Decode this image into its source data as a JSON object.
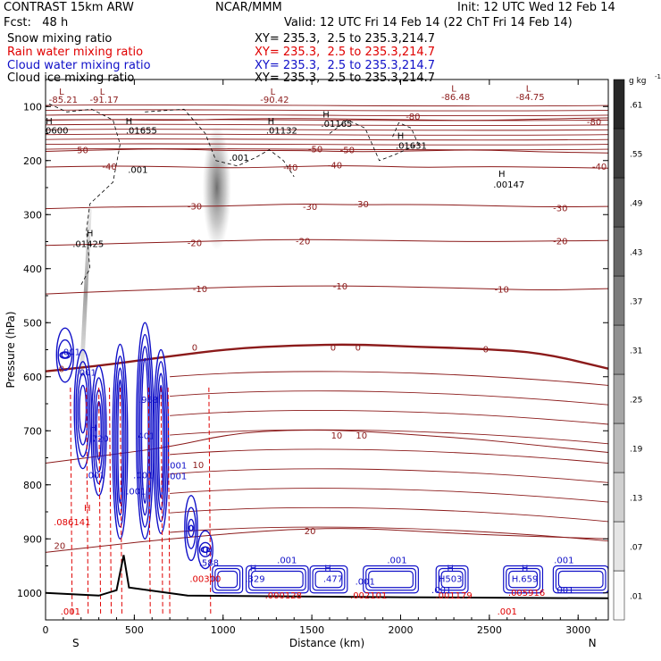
{
  "header": {
    "model": "CONTRAST 15km ARW",
    "org": "NCAR/MMM",
    "init": "Init: 12 UTC Wed 12 Feb 14",
    "fcst": "Fcst:   48 h",
    "valid": "Valid: 12 UTC Fri 14 Feb 14 (22 ChT Fri 14 Feb 14)"
  },
  "fields": [
    {
      "name": "Snow mixing ratio",
      "xy": "XY= 235.3,  2.5 to 235.3,214.7",
      "color": "#000000"
    },
    {
      "name": "Rain water mixing ratio",
      "xy": "XY= 235.3,  2.5 to 235.3,214.7",
      "color": "#e00000"
    },
    {
      "name": "Cloud water mixing ratio",
      "xy": "XY= 235.3,  2.5 to 235.3,214.7",
      "color": "#1010c8"
    },
    {
      "name": "Cloud ice mixing ratio",
      "xy": "XY= 235.3,  2.5 to 235.3,214.7",
      "color": "#000000"
    }
  ],
  "chart_data": {
    "type": "cross-section contour",
    "xlabel": "Distance (km)",
    "ylabel": "Pressure (hPa)",
    "xlim": [
      0,
      3170
    ],
    "ylim": [
      1050,
      50
    ],
    "x_ticks": [
      0,
      500,
      1000,
      1500,
      2000,
      2500,
      3000
    ],
    "y_ticks": [
      100,
      200,
      300,
      400,
      500,
      600,
      700,
      800,
      900,
      1000
    ],
    "x_end_labels": {
      "left": "S",
      "right": "N"
    },
    "colorbar": {
      "unit": "g kg",
      "unit_exp": "-1",
      "levels": [
        ".01",
        ".07",
        ".13",
        ".19",
        ".25",
        ".31",
        ".37",
        ".43",
        ".49",
        ".55",
        ".61"
      ],
      "level_values": [
        0.01,
        0.07,
        0.13,
        0.19,
        0.25,
        0.31,
        0.37,
        0.43,
        0.49,
        0.55,
        0.61
      ]
    },
    "temperature_contours": {
      "color": "#8b1a1a",
      "levels": [
        -80,
        -50,
        -40,
        -30,
        -20,
        -10,
        0,
        10,
        20
      ],
      "isolines": [
        {
          "label": "-80",
          "pressure": [
            125,
            124,
            126,
            123,
            122,
            123,
            125,
            126,
            123,
            121
          ]
        },
        {
          "label": "-50",
          "pressure": [
            183,
            180,
            178,
            182,
            181,
            184,
            182,
            180,
            184,
            186
          ]
        },
        {
          "label": "-40",
          "pressure": [
            212,
            210,
            211,
            214,
            211,
            209,
            213,
            211,
            212,
            214
          ]
        },
        {
          "label": "-30",
          "pressure": [
            289,
            286,
            285,
            284,
            280,
            282,
            281,
            283,
            286,
            285
          ]
        },
        {
          "label": "-20",
          "pressure": [
            357,
            354,
            351,
            348,
            346,
            347,
            349,
            350,
            349,
            348
          ]
        },
        {
          "label": "-10",
          "pressure": [
            447,
            442,
            438,
            434,
            432,
            432,
            434,
            437,
            440,
            437
          ]
        },
        {
          "label": "0",
          "pressure": [
            590,
            578,
            562,
            548,
            542,
            540,
            545,
            548,
            556,
            585
          ]
        },
        {
          "label": "10",
          "pressure": [
            760,
            745,
            730,
            705,
            698,
            700,
            708,
            716,
            728,
            740
          ]
        },
        {
          "label": "20",
          "pressure": [
            925,
            912,
            900,
            890,
            882,
            880,
            886,
            892,
            896,
            900
          ]
        }
      ],
      "x": [
        0,
        350,
        700,
        1050,
        1400,
        1750,
        2100,
        2450,
        2800,
        3170
      ]
    },
    "maxima_labels": [
      {
        "text": "L",
        "x": 90,
        "p": 78,
        "color": "#8b1a1a"
      },
      {
        "text": "-85.21",
        "x": 100,
        "p": 93,
        "color": "#8b1a1a"
      },
      {
        "text": "L",
        "x": 320,
        "p": 78,
        "color": "#8b1a1a"
      },
      {
        "text": "-91.17",
        "x": 330,
        "p": 93,
        "color": "#8b1a1a"
      },
      {
        "text": "L",
        "x": 1280,
        "p": 78,
        "color": "#8b1a1a"
      },
      {
        "text": "-90.42",
        "x": 1290,
        "p": 93,
        "color": "#8b1a1a"
      },
      {
        "text": "L",
        "x": 2300,
        "p": 72,
        "color": "#8b1a1a"
      },
      {
        "text": "-86.48",
        "x": 2310,
        "p": 88,
        "color": "#8b1a1a"
      },
      {
        "text": "L",
        "x": 2720,
        "p": 72,
        "color": "#8b1a1a"
      },
      {
        "text": "-84.75",
        "x": 2730,
        "p": 88,
        "color": "#8b1a1a"
      },
      {
        "text": "H",
        "x": 20,
        "p": 133,
        "color": "#000000"
      },
      {
        "text": ".00600",
        "x": 40,
        "p": 150,
        "color": "#000000"
      },
      {
        "text": "H",
        "x": 470,
        "p": 133,
        "color": "#000000"
      },
      {
        "text": ".01655",
        "x": 540,
        "p": 150,
        "color": "#000000"
      },
      {
        "text": "H",
        "x": 1270,
        "p": 133,
        "color": "#000000"
      },
      {
        "text": ".01132",
        "x": 1330,
        "p": 150,
        "color": "#000000"
      },
      {
        "text": "H",
        "x": 1580,
        "p": 120,
        "color": "#000000"
      },
      {
        "text": ".01165",
        "x": 1640,
        "p": 138,
        "color": "#000000"
      },
      {
        "text": "H",
        "x": 2000,
        "p": 160,
        "color": "#000000"
      },
      {
        "text": ".01631",
        "x": 2060,
        "p": 178,
        "color": "#000000"
      },
      {
        "text": "H",
        "x": 2570,
        "p": 230,
        "color": "#000000"
      },
      {
        "text": ".00147",
        "x": 2610,
        "p": 250,
        "color": "#000000"
      },
      {
        "text": "H",
        "x": 250,
        "p": 340,
        "color": "#000000"
      },
      {
        "text": ".01425",
        "x": 240,
        "p": 360,
        "color": "#000000"
      },
      {
        "text": ".001",
        "x": 520,
        "p": 223,
        "color": "#000000"
      },
      {
        "text": ".001",
        "x": 1090,
        "p": 200,
        "color": "#000000"
      },
      {
        "text": ".001",
        "x": 140,
        "p": 560,
        "color": "#1010c8"
      },
      {
        "text": ".001",
        "x": 230,
        "p": 598,
        "color": "#1010c8"
      },
      {
        "text": ".968",
        "x": 580,
        "p": 648,
        "color": "#1010c8"
      },
      {
        "text": "H",
        "x": 270,
        "p": 700,
        "color": "#1010c8"
      },
      {
        "text": ".720",
        "x": 300,
        "p": 720,
        "color": "#1010c8"
      },
      {
        "text": ".401",
        "x": 560,
        "p": 715,
        "color": "#1010c8"
      },
      {
        "text": ".001",
        "x": 280,
        "p": 788,
        "color": "#1010c8"
      },
      {
        "text": ".001",
        "x": 550,
        "p": 788,
        "color": "#1010c8"
      },
      {
        "text": ".001",
        "x": 740,
        "p": 770,
        "color": "#1010c8"
      },
      {
        "text": ".001",
        "x": 740,
        "p": 790,
        "color": "#1010c8"
      },
      {
        "text": ".001",
        "x": 510,
        "p": 818,
        "color": "#1010c8"
      },
      {
        "text": "H",
        "x": 235,
        "p": 848,
        "color": "#e00000"
      },
      {
        "text": ".086141",
        "x": 150,
        "p": 875,
        "color": "#e00000"
      },
      {
        "text": "H",
        "x": 920,
        "p": 930,
        "color": "#1010c8"
      },
      {
        "text": ".588",
        "x": 920,
        "p": 950,
        "color": "#1010c8"
      },
      {
        "text": ".00300",
        "x": 900,
        "p": 980,
        "color": "#e00000"
      },
      {
        "text": "H",
        "x": 1170,
        "p": 960,
        "color": "#1010c8"
      },
      {
        "text": ".329",
        "x": 1180,
        "p": 980,
        "color": "#1010c8"
      },
      {
        "text": ".001",
        "x": 1360,
        "p": 945,
        "color": "#1010c8"
      },
      {
        "text": ".000128",
        "x": 1340,
        "p": 1010,
        "color": "#e00000"
      },
      {
        "text": "H",
        "x": 1590,
        "p": 960,
        "color": "#1010c8"
      },
      {
        "text": ".477",
        "x": 1620,
        "p": 980,
        "color": "#1010c8"
      },
      {
        "text": ".001",
        "x": 1800,
        "p": 985,
        "color": "#1010c8"
      },
      {
        "text": ".002101",
        "x": 1820,
        "p": 1010,
        "color": "#e00000"
      },
      {
        "text": ".001",
        "x": 1980,
        "p": 945,
        "color": "#1010c8"
      },
      {
        "text": "H",
        "x": 2280,
        "p": 960,
        "color": "#1010c8"
      },
      {
        "text": "H503",
        "x": 2280,
        "p": 980,
        "color": "#1010c8"
      },
      {
        "text": ".001179",
        "x": 2300,
        "p": 1010,
        "color": "#e00000"
      },
      {
        "text": ".001",
        "x": 2230,
        "p": 1000,
        "color": "#1010c8"
      },
      {
        "text": "H",
        "x": 2700,
        "p": 960,
        "color": "#1010c8"
      },
      {
        "text": "H.659",
        "x": 2700,
        "p": 980,
        "color": "#1010c8"
      },
      {
        "text": ".005916",
        "x": 2710,
        "p": 1005,
        "color": "#e00000"
      },
      {
        "text": ".001",
        "x": 2920,
        "p": 945,
        "color": "#1010c8"
      },
      {
        "text": ".001",
        "x": 2920,
        "p": 1000,
        "color": "#1010c8"
      },
      {
        "text": ".001",
        "x": 2600,
        "p": 1040,
        "color": "#e00000"
      },
      {
        "text": ".001",
        "x": 140,
        "p": 1040,
        "color": "#e00000"
      }
    ],
    "isotherm_labels": [
      {
        "text": "-80",
        "x": 2070,
        "p": 118
      },
      {
        "text": "-80",
        "x": 3090,
        "p": 128
      },
      {
        "text": "-50",
        "x": 200,
        "p": 180
      },
      {
        "text": "-50",
        "x": 1520,
        "p": 178
      },
      {
        "text": "-50",
        "x": 1700,
        "p": 180
      },
      {
        "text": "-40",
        "x": 360,
        "p": 210
      },
      {
        "text": "-40",
        "x": 1380,
        "p": 212
      },
      {
        "text": "-40",
        "x": 1630,
        "p": 208
      },
      {
        "text": "-40",
        "x": 3120,
        "p": 210
      },
      {
        "text": "-30",
        "x": 840,
        "p": 284
      },
      {
        "text": "-30",
        "x": 1490,
        "p": 285
      },
      {
        "text": "-30",
        "x": 1780,
        "p": 280
      },
      {
        "text": "-30",
        "x": 2900,
        "p": 287
      },
      {
        "text": "-20",
        "x": 840,
        "p": 352
      },
      {
        "text": "-20",
        "x": 1450,
        "p": 348
      },
      {
        "text": "-20",
        "x": 2900,
        "p": 348
      },
      {
        "text": "-10",
        "x": 870,
        "p": 437
      },
      {
        "text": "-10",
        "x": 1660,
        "p": 432
      },
      {
        "text": "-10",
        "x": 2570,
        "p": 438
      },
      {
        "text": "0",
        "x": 90,
        "p": 585
      },
      {
        "text": "0",
        "x": 840,
        "p": 545
      },
      {
        "text": "0",
        "x": 1620,
        "p": 545
      },
      {
        "text": "0",
        "x": 1760,
        "p": 545
      },
      {
        "text": "0",
        "x": 2480,
        "p": 548
      },
      {
        "text": "10",
        "x": 1640,
        "p": 708
      },
      {
        "text": "10",
        "x": 1780,
        "p": 708
      },
      {
        "text": "10",
        "x": 860,
        "p": 762
      },
      {
        "text": "20",
        "x": 80,
        "p": 912
      },
      {
        "text": "20",
        "x": 1490,
        "p": 885
      }
    ]
  }
}
